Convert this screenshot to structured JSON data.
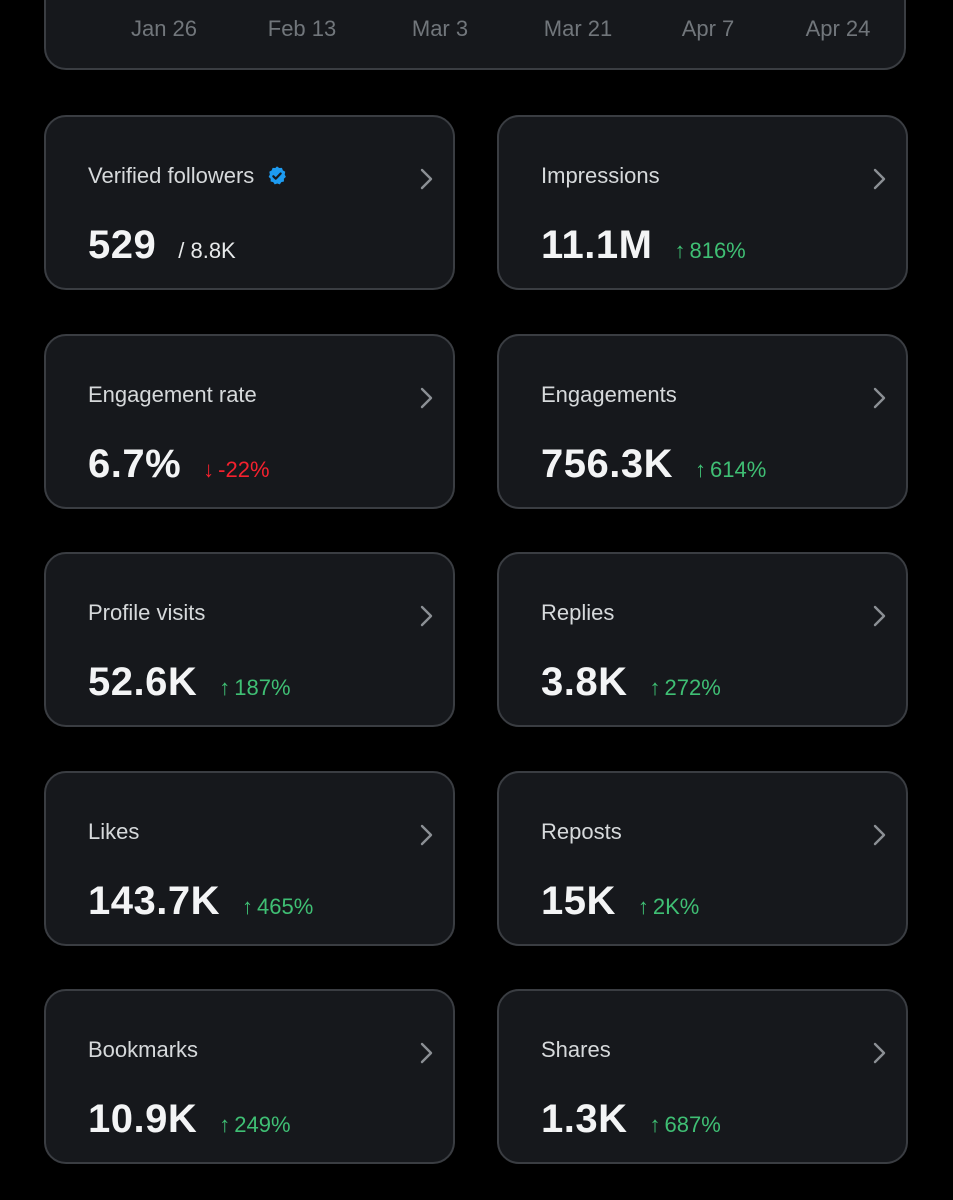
{
  "chart": {
    "x_ticks": [
      "Jan 26",
      "Feb 13",
      "Mar 3",
      "Mar 21",
      "Apr 7",
      "Apr 24"
    ]
  },
  "colors": {
    "positive": "#3fbf74",
    "negative": "#f4212e",
    "verified_badge": "#1d9bf0"
  },
  "stats": [
    {
      "label": "Verified followers",
      "value": "529",
      "sub_value": "/ 8.8K",
      "verified_icon": "verified-badge-icon"
    },
    {
      "label": "Impressions",
      "value": "11.1M",
      "change": "816%",
      "direction": "up"
    },
    {
      "label": "Engagement rate",
      "value": "6.7%",
      "change": "-22%",
      "direction": "down"
    },
    {
      "label": "Engagements",
      "value": "756.3K",
      "change": "614%",
      "direction": "up"
    },
    {
      "label": "Profile visits",
      "value": "52.6K",
      "change": "187%",
      "direction": "up"
    },
    {
      "label": "Replies",
      "value": "3.8K",
      "change": "272%",
      "direction": "up"
    },
    {
      "label": "Likes",
      "value": "143.7K",
      "change": "465%",
      "direction": "up"
    },
    {
      "label": "Reposts",
      "value": "15K",
      "change": "2K%",
      "direction": "up"
    },
    {
      "label": "Bookmarks",
      "value": "10.9K",
      "change": "249%",
      "direction": "up"
    },
    {
      "label": "Shares",
      "value": "1.3K",
      "change": "687%",
      "direction": "up"
    }
  ]
}
